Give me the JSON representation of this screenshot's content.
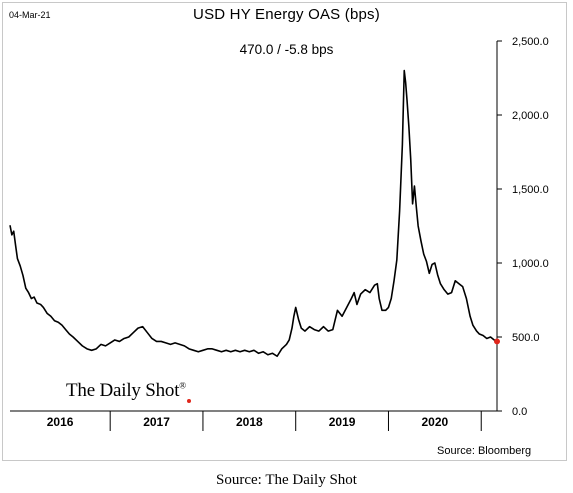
{
  "header": {
    "date": "04-Mar-21",
    "title": "USD HY Energy OAS (bps)",
    "subtitle": "470.0  /  -5.8 bps"
  },
  "watermark": {
    "text": "The Daily Shot",
    "mark": "®"
  },
  "source_inner": "Source: Bloomberg",
  "source_outer": "Source: The Daily Shot",
  "colors": {
    "line": "#000000",
    "last_point": "#e0261b",
    "axis": "#000000",
    "frame": "#c8c8c8"
  },
  "chart_data": {
    "type": "line",
    "title": "USD HY Energy OAS (bps)",
    "subtitle": "470.0  /  -5.8 bps",
    "xlabel": "",
    "ylabel": "",
    "x_range": [
      2015.92,
      2021.17
    ],
    "ylim": [
      0,
      2500
    ],
    "y_ticks": [
      0,
      500,
      1000,
      1500,
      2000,
      2500
    ],
    "y_tick_labels": [
      "0.0",
      "500.0",
      "1,000.0",
      "1,500.0",
      "2,000.0",
      "2,500.0"
    ],
    "x_categories": [
      "2016",
      "2017",
      "2018",
      "2019",
      "2020"
    ],
    "grid": false,
    "legend": "none",
    "last_value": 470.0,
    "change": -5.8,
    "series": [
      {
        "values": [
          [
            2015.92,
            1255
          ],
          [
            2015.94,
            1190
          ],
          [
            2015.96,
            1215
          ],
          [
            2015.98,
            1120
          ],
          [
            2016.0,
            1030
          ],
          [
            2016.03,
            980
          ],
          [
            2016.06,
            915
          ],
          [
            2016.09,
            830
          ],
          [
            2016.12,
            800
          ],
          [
            2016.15,
            760
          ],
          [
            2016.18,
            770
          ],
          [
            2016.21,
            730
          ],
          [
            2016.25,
            720
          ],
          [
            2016.28,
            700
          ],
          [
            2016.32,
            660
          ],
          [
            2016.36,
            640
          ],
          [
            2016.4,
            610
          ],
          [
            2016.44,
            600
          ],
          [
            2016.48,
            580
          ],
          [
            2016.52,
            550
          ],
          [
            2016.56,
            520
          ],
          [
            2016.6,
            500
          ],
          [
            2016.65,
            470
          ],
          [
            2016.7,
            440
          ],
          [
            2016.75,
            420
          ],
          [
            2016.8,
            410
          ],
          [
            2016.85,
            420
          ],
          [
            2016.9,
            450
          ],
          [
            2016.95,
            440
          ],
          [
            2017.0,
            460
          ],
          [
            2017.05,
            480
          ],
          [
            2017.1,
            470
          ],
          [
            2017.15,
            490
          ],
          [
            2017.2,
            500
          ],
          [
            2017.25,
            530
          ],
          [
            2017.3,
            560
          ],
          [
            2017.35,
            570
          ],
          [
            2017.4,
            530
          ],
          [
            2017.45,
            490
          ],
          [
            2017.5,
            470
          ],
          [
            2017.55,
            470
          ],
          [
            2017.6,
            460
          ],
          [
            2017.65,
            450
          ],
          [
            2017.7,
            460
          ],
          [
            2017.75,
            450
          ],
          [
            2017.8,
            440
          ],
          [
            2017.85,
            420
          ],
          [
            2017.9,
            410
          ],
          [
            2017.95,
            400
          ],
          [
            2018.0,
            410
          ],
          [
            2018.05,
            420
          ],
          [
            2018.1,
            420
          ],
          [
            2018.15,
            410
          ],
          [
            2018.2,
            400
          ],
          [
            2018.25,
            410
          ],
          [
            2018.3,
            400
          ],
          [
            2018.35,
            410
          ],
          [
            2018.4,
            400
          ],
          [
            2018.45,
            410
          ],
          [
            2018.5,
            400
          ],
          [
            2018.55,
            410
          ],
          [
            2018.6,
            390
          ],
          [
            2018.65,
            400
          ],
          [
            2018.7,
            380
          ],
          [
            2018.75,
            390
          ],
          [
            2018.8,
            370
          ],
          [
            2018.85,
            420
          ],
          [
            2018.9,
            450
          ],
          [
            2018.93,
            480
          ],
          [
            2018.96,
            560
          ],
          [
            2018.98,
            640
          ],
          [
            2019.0,
            700
          ],
          [
            2019.03,
            620
          ],
          [
            2019.06,
            560
          ],
          [
            2019.1,
            540
          ],
          [
            2019.15,
            570
          ],
          [
            2019.2,
            550
          ],
          [
            2019.25,
            540
          ],
          [
            2019.3,
            570
          ],
          [
            2019.35,
            540
          ],
          [
            2019.4,
            550
          ],
          [
            2019.45,
            680
          ],
          [
            2019.5,
            640
          ],
          [
            2019.55,
            700
          ],
          [
            2019.6,
            760
          ],
          [
            2019.63,
            800
          ],
          [
            2019.66,
            720
          ],
          [
            2019.7,
            790
          ],
          [
            2019.75,
            820
          ],
          [
            2019.8,
            800
          ],
          [
            2019.85,
            850
          ],
          [
            2019.88,
            860
          ],
          [
            2019.9,
            760
          ],
          [
            2019.93,
            680
          ],
          [
            2019.97,
            680
          ],
          [
            2020.0,
            700
          ],
          [
            2020.03,
            760
          ],
          [
            2020.06,
            880
          ],
          [
            2020.09,
            1020
          ],
          [
            2020.12,
            1350
          ],
          [
            2020.15,
            1800
          ],
          [
            2020.17,
            2300
          ],
          [
            2020.185,
            2220
          ],
          [
            2020.2,
            2100
          ],
          [
            2020.22,
            1920
          ],
          [
            2020.24,
            1700
          ],
          [
            2020.26,
            1400
          ],
          [
            2020.28,
            1520
          ],
          [
            2020.3,
            1380
          ],
          [
            2020.32,
            1250
          ],
          [
            2020.35,
            1150
          ],
          [
            2020.38,
            1060
          ],
          [
            2020.41,
            1010
          ],
          [
            2020.44,
            930
          ],
          [
            2020.47,
            990
          ],
          [
            2020.5,
            1000
          ],
          [
            2020.53,
            920
          ],
          [
            2020.56,
            860
          ],
          [
            2020.6,
            820
          ],
          [
            2020.64,
            790
          ],
          [
            2020.68,
            800
          ],
          [
            2020.72,
            880
          ],
          [
            2020.76,
            860
          ],
          [
            2020.8,
            840
          ],
          [
            2020.84,
            760
          ],
          [
            2020.88,
            640
          ],
          [
            2020.91,
            580
          ],
          [
            2020.95,
            540
          ],
          [
            2020.98,
            520
          ],
          [
            2021.02,
            510
          ],
          [
            2021.06,
            490
          ],
          [
            2021.1,
            500
          ],
          [
            2021.14,
            480
          ],
          [
            2021.17,
            470
          ]
        ]
      }
    ]
  }
}
